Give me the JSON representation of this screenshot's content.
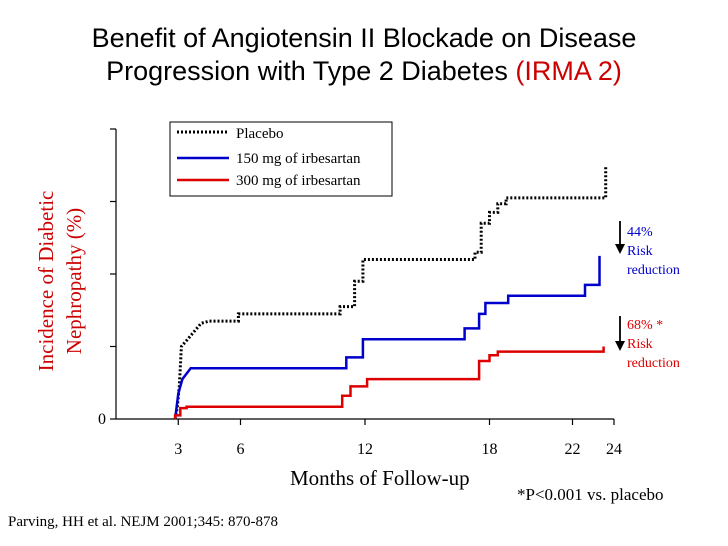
{
  "title": {
    "line1": "Benefit of Angiotensin II Blockade on Disease",
    "line2_main": "Progression with Type 2 Diabetes ",
    "line2_highlight": "(IRMA 2)"
  },
  "citation": "Parving, HH et al. NEJM 2001;345: 870-878",
  "footnote": "*P<0.001 vs. placebo",
  "colors": {
    "placebo": "#000000",
    "irbesartan_150": "#0000cc",
    "irbesartan_300": "#dd0000",
    "title_highlight": "#cc0000"
  },
  "annotations": {
    "blue": {
      "line1": "44%",
      "line2": "Risk",
      "line3": "reduction"
    },
    "red": {
      "line1": "68% *",
      "line2": "Risk",
      "line3": "reduction"
    }
  },
  "chart_data": {
    "type": "line",
    "xlabel": "Months of Follow-up",
    "ylabel_line1": "Incidence of Diabetic",
    "ylabel_line2": "Nephropathy (%)",
    "xlim": [
      0,
      24
    ],
    "ylim": [
      0,
      4
    ],
    "x_ticks": [
      3,
      6,
      12,
      18,
      22,
      24
    ],
    "y_ticks": [
      0,
      1,
      2,
      3,
      4
    ],
    "y_tick_labels": [
      "0"
    ],
    "legend_position": "top-center",
    "series": [
      {
        "name": "Placebo",
        "style": "dotted",
        "color": "#000000",
        "points": [
          [
            2.85,
            0
          ],
          [
            2.95,
            0.15
          ],
          [
            3.05,
            0.45
          ],
          [
            3.15,
            1.0
          ],
          [
            3.45,
            1.1
          ],
          [
            3.75,
            1.2
          ],
          [
            4.1,
            1.32
          ],
          [
            4.5,
            1.35
          ],
          [
            5.9,
            1.35
          ],
          [
            5.9,
            1.45
          ],
          [
            10.8,
            1.45
          ],
          [
            10.8,
            1.55
          ],
          [
            11.5,
            1.55
          ],
          [
            11.5,
            1.9
          ],
          [
            11.9,
            1.9
          ],
          [
            11.9,
            2.2
          ],
          [
            17.3,
            2.2
          ],
          [
            17.3,
            2.3
          ],
          [
            17.6,
            2.3
          ],
          [
            17.6,
            2.7
          ],
          [
            18.0,
            2.7
          ],
          [
            18.0,
            2.85
          ],
          [
            18.4,
            2.85
          ],
          [
            18.4,
            2.97
          ],
          [
            18.8,
            2.97
          ],
          [
            18.8,
            3.05
          ],
          [
            23.6,
            3.05
          ],
          [
            23.6,
            3.5
          ]
        ]
      },
      {
        "name": "150 mg of irbesartan",
        "style": "solid",
        "color": "#0000cc",
        "points": [
          [
            2.85,
            0
          ],
          [
            3.0,
            0.35
          ],
          [
            3.2,
            0.55
          ],
          [
            3.6,
            0.7
          ],
          [
            11.1,
            0.7
          ],
          [
            11.1,
            0.85
          ],
          [
            11.9,
            0.85
          ],
          [
            11.9,
            1.1
          ],
          [
            16.8,
            1.1
          ],
          [
            16.8,
            1.25
          ],
          [
            17.5,
            1.25
          ],
          [
            17.5,
            1.45
          ],
          [
            17.8,
            1.45
          ],
          [
            17.8,
            1.6
          ],
          [
            18.9,
            1.6
          ],
          [
            18.9,
            1.7
          ],
          [
            22.6,
            1.7
          ],
          [
            22.6,
            1.85
          ],
          [
            23.3,
            1.85
          ],
          [
            23.3,
            2.25
          ]
        ]
      },
      {
        "name": "300 mg of irbesartan",
        "style": "solid",
        "color": "#dd0000",
        "points": [
          [
            2.85,
            0
          ],
          [
            2.85,
            0.05
          ],
          [
            3.1,
            0.05
          ],
          [
            3.1,
            0.15
          ],
          [
            3.4,
            0.15
          ],
          [
            3.4,
            0.17
          ],
          [
            10.9,
            0.17
          ],
          [
            10.9,
            0.32
          ],
          [
            11.3,
            0.32
          ],
          [
            11.3,
            0.45
          ],
          [
            12.1,
            0.45
          ],
          [
            12.1,
            0.55
          ],
          [
            17.5,
            0.55
          ],
          [
            17.5,
            0.8
          ],
          [
            18.0,
            0.8
          ],
          [
            18.0,
            0.88
          ],
          [
            18.4,
            0.88
          ],
          [
            18.4,
            0.93
          ],
          [
            23.5,
            0.93
          ],
          [
            23.5,
            1.0
          ]
        ]
      }
    ]
  }
}
